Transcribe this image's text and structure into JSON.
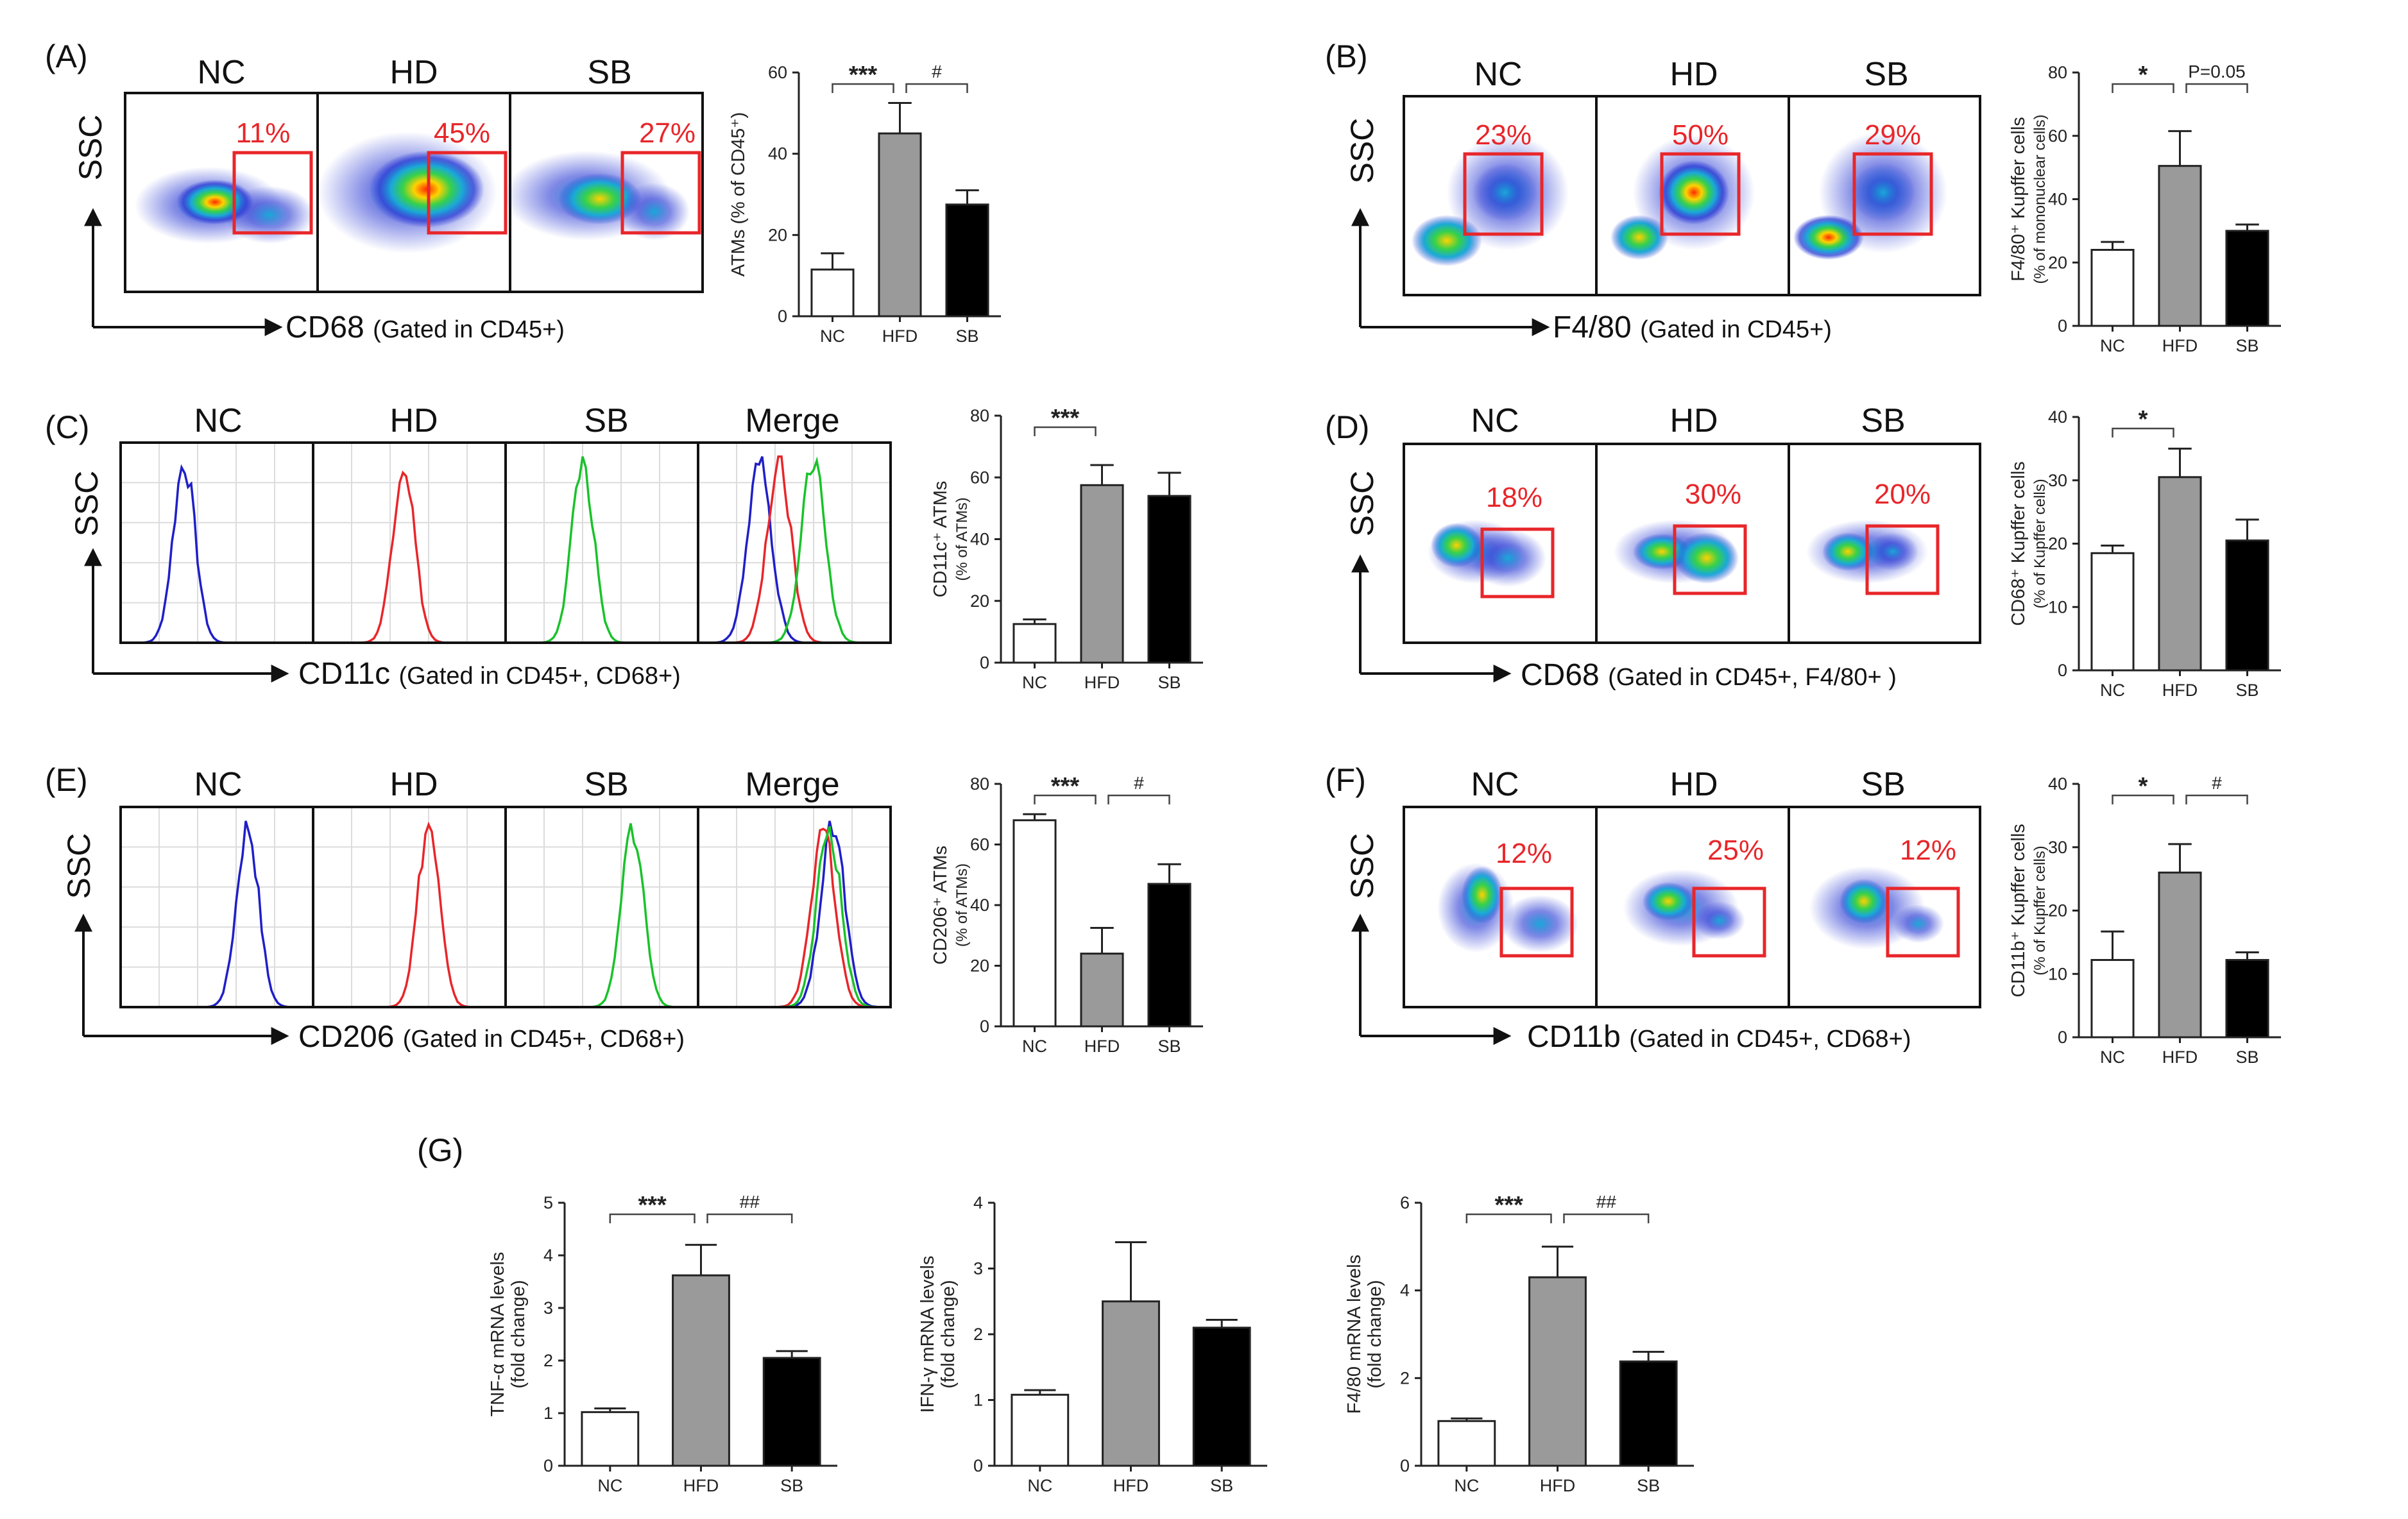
{
  "colors": {
    "nc": "#ffffff",
    "hfd": "#9a9a9a",
    "sb": "#000000",
    "gate": "#e8262a",
    "blue": "#1f1fc8",
    "red": "#e8262a",
    "green": "#19c22a"
  },
  "flow_panels": [
    {
      "id": "A",
      "label": "(A)",
      "columns": [
        "NC",
        "HD",
        "SB"
      ],
      "percents": [
        "11%",
        "45%",
        "27%"
      ],
      "y_axis": "SSC",
      "x_axis_main": "CD68",
      "x_axis_sub": "(Gated in CD45+)"
    },
    {
      "id": "B",
      "label": "(B)",
      "columns": [
        "NC",
        "HD",
        "SB"
      ],
      "percents": [
        "23%",
        "50%",
        "29%"
      ],
      "y_axis": "SSC",
      "x_axis_main": "F4/80",
      "x_axis_sub": "(Gated in CD45+)"
    },
    {
      "id": "D",
      "label": "(D)",
      "columns": [
        "NC",
        "HD",
        "SB"
      ],
      "percents": [
        "18%",
        "30%",
        "20%"
      ],
      "y_axis": "SSC",
      "x_axis_main": "CD68",
      "x_axis_sub": "(Gated in CD45+, F4/80+ )"
    },
    {
      "id": "F",
      "label": "(F)",
      "columns": [
        "NC",
        "HD",
        "SB"
      ],
      "percents": [
        "12%",
        "25%",
        "12%"
      ],
      "y_axis": "SSC",
      "x_axis_main": "CD11b",
      "x_axis_sub": "(Gated in CD45+, CD68+)"
    }
  ],
  "histo_panels": [
    {
      "id": "C",
      "label": "(C)",
      "columns": [
        "NC",
        "HD",
        "SB",
        "Merge"
      ],
      "y_axis": "SSC",
      "x_axis_main": "CD11c",
      "x_axis_sub": "(Gated in CD45+, CD68+)",
      "peaks": [
        0.33,
        0.47,
        0.4,
        0.47
      ]
    },
    {
      "id": "E",
      "label": "(E)",
      "columns": [
        "NC",
        "HD",
        "SB",
        "Merge"
      ],
      "y_axis": "SSC",
      "x_axis_main": "CD206",
      "x_axis_sub": "(Gated in CD45+, CD68+)",
      "peaks": [
        0.66,
        0.6,
        0.66,
        0.66
      ]
    }
  ],
  "g_label": "(G)",
  "chart_data": [
    {
      "id": "A",
      "type": "bar",
      "categories": [
        "NC",
        "HFD",
        "SB"
      ],
      "values": [
        11.5,
        45,
        27.5
      ],
      "errors": [
        4,
        7.5,
        3.5
      ],
      "ylim": [
        0,
        60
      ],
      "yticks": [
        0,
        20,
        40,
        60
      ],
      "ylabel": "ATMs (% of CD45⁺)",
      "ylabel2": "",
      "sig": [
        {
          "from": 0,
          "to": 1,
          "text": "***"
        },
        {
          "from": 1,
          "to": 2,
          "text": "#"
        }
      ]
    },
    {
      "id": "B",
      "type": "bar",
      "categories": [
        "NC",
        "HFD",
        "SB"
      ],
      "values": [
        24,
        50.5,
        30
      ],
      "errors": [
        2.5,
        11,
        2
      ],
      "ylim": [
        0,
        80
      ],
      "yticks": [
        0,
        20,
        40,
        60,
        80
      ],
      "ylabel": "F4/80⁺ Kupffer cells",
      "ylabel2": "(% of mononuclear cells)",
      "sig": [
        {
          "from": 0,
          "to": 1,
          "text": "*"
        },
        {
          "from": 1,
          "to": 2,
          "text": "P=0.05"
        }
      ]
    },
    {
      "id": "C",
      "type": "bar",
      "categories": [
        "NC",
        "HFD",
        "SB"
      ],
      "values": [
        12.5,
        57.5,
        54
      ],
      "errors": [
        1.5,
        6.5,
        7.5
      ],
      "ylim": [
        0,
        80
      ],
      "yticks": [
        0,
        20,
        40,
        60,
        80
      ],
      "ylabel": "CD11c⁺ ATMs",
      "ylabel2": "(% of ATMs)",
      "sig": [
        {
          "from": 0,
          "to": 1,
          "text": "***"
        }
      ]
    },
    {
      "id": "D",
      "type": "bar",
      "categories": [
        "NC",
        "HFD",
        "SB"
      ],
      "values": [
        18.5,
        30.5,
        20.5
      ],
      "errors": [
        1.2,
        4.5,
        3.3
      ],
      "ylim": [
        0,
        40
      ],
      "yticks": [
        0,
        10,
        20,
        30,
        40
      ],
      "ylabel": "CD68⁺ Kupffer cells",
      "ylabel2": "(% of Kupffer cells)",
      "sig": [
        {
          "from": 0,
          "to": 1,
          "text": "*"
        }
      ]
    },
    {
      "id": "E",
      "type": "bar",
      "categories": [
        "NC",
        "HFD",
        "SB"
      ],
      "values": [
        68,
        24,
        47
      ],
      "errors": [
        2,
        8.5,
        6.5
      ],
      "ylim": [
        0,
        80
      ],
      "yticks": [
        0,
        20,
        40,
        60,
        80
      ],
      "ylabel": "CD206⁺ ATMs",
      "ylabel2": "(% of ATMs)",
      "sig": [
        {
          "from": 0,
          "to": 1,
          "text": "***"
        },
        {
          "from": 1,
          "to": 2,
          "text": "#"
        }
      ]
    },
    {
      "id": "F",
      "type": "bar",
      "categories": [
        "NC",
        "HFD",
        "SB"
      ],
      "values": [
        12.2,
        26,
        12.2
      ],
      "errors": [
        4.5,
        4.5,
        1.2
      ],
      "ylim": [
        0,
        40
      ],
      "yticks": [
        0,
        10,
        20,
        30,
        40
      ],
      "ylabel": "CD11b⁺ Kupffer cells",
      "ylabel2": "(% of Kupffer cells)",
      "sig": [
        {
          "from": 0,
          "to": 1,
          "text": "*"
        },
        {
          "from": 1,
          "to": 2,
          "text": "#"
        }
      ]
    },
    {
      "id": "G1",
      "type": "bar",
      "categories": [
        "NC",
        "HFD",
        "SB"
      ],
      "values": [
        1.02,
        3.62,
        2.05
      ],
      "errors": [
        0.07,
        0.58,
        0.13
      ],
      "ylim": [
        0,
        5
      ],
      "yticks": [
        0,
        1,
        2,
        3,
        4,
        5
      ],
      "ylabel": "TNF-α mRNA levels",
      "ylabel2": "(fold change)",
      "sig": [
        {
          "from": 0,
          "to": 1,
          "text": "***"
        },
        {
          "from": 1,
          "to": 2,
          "text": "##"
        }
      ]
    },
    {
      "id": "G2",
      "type": "bar",
      "categories": [
        "NC",
        "HFD",
        "SB"
      ],
      "values": [
        1.08,
        2.5,
        2.1
      ],
      "errors": [
        0.07,
        0.9,
        0.12
      ],
      "ylim": [
        0,
        4
      ],
      "yticks": [
        0,
        1,
        2,
        3,
        4
      ],
      "ylabel": "IFN-γ mRNA levels",
      "ylabel2": "(fold change)",
      "sig": []
    },
    {
      "id": "G3",
      "type": "bar",
      "categories": [
        "NC",
        "HFD",
        "SB"
      ],
      "values": [
        1.02,
        4.3,
        2.38
      ],
      "errors": [
        0.06,
        0.7,
        0.22
      ],
      "ylim": [
        0,
        6
      ],
      "yticks": [
        0,
        2,
        4,
        6
      ],
      "ylabel": "F4/80 mRNA levels",
      "ylabel2": "(fold change)",
      "sig": [
        {
          "from": 0,
          "to": 1,
          "text": "***"
        },
        {
          "from": 1,
          "to": 2,
          "text": "##"
        }
      ]
    }
  ]
}
